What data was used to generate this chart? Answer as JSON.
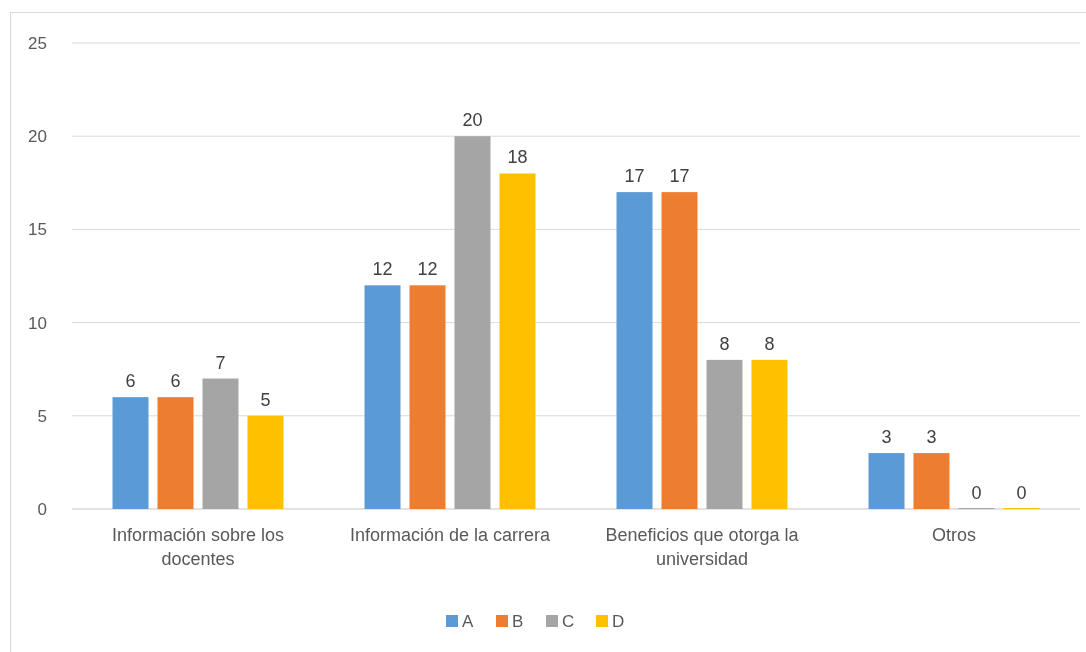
{
  "chart_data": {
    "type": "bar",
    "categories": [
      "Información sobre los docentes",
      "Información de la carrera",
      "Beneficios que otorga la universidad",
      "Otros"
    ],
    "series": [
      {
        "name": "A",
        "color": "#5b9bd5",
        "values": [
          6,
          12,
          17,
          3
        ]
      },
      {
        "name": "B",
        "color": "#ed7d31",
        "values": [
          6,
          12,
          17,
          3
        ]
      },
      {
        "name": "C",
        "color": "#a5a5a5",
        "values": [
          7,
          20,
          8,
          0
        ]
      },
      {
        "name": "D",
        "color": "#ffc000",
        "values": [
          5,
          18,
          8,
          0
        ]
      }
    ],
    "ylim": [
      0,
      25
    ],
    "yticks": [
      0,
      5,
      10,
      15,
      20,
      25
    ],
    "grid": "y",
    "legend": "bottom",
    "data_labels": true
  }
}
